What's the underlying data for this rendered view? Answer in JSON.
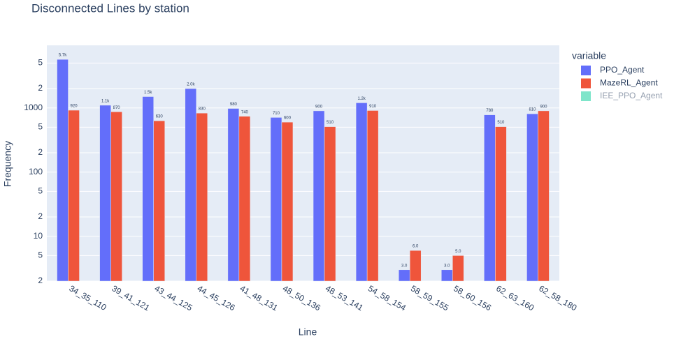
{
  "chart_data": {
    "type": "bar",
    "title": "Disconnected Lines by station",
    "x_label": "Line",
    "y_label": "Frequency",
    "legend_title": "variable",
    "categories": [
      "34_35_110",
      "39_41_121",
      "43_44_125",
      "44_45_126",
      "41_48_131",
      "48_50_136",
      "48_53_141",
      "54_58_154",
      "58_59_155",
      "58_60_156",
      "62_63_160",
      "62_58_180"
    ],
    "series": [
      {
        "name": "PPO_Agent",
        "color": "#636efa",
        "values": [
          5700,
          1100,
          1500,
          2000,
          980,
          710,
          900,
          1200,
          3,
          3,
          780,
          810
        ],
        "value_labels": [
          "5.7k",
          "1.1k",
          "1.5k",
          "2.0k",
          "980",
          "710",
          "900",
          "1.2k",
          "3.0",
          "3.0",
          "780",
          "810"
        ]
      },
      {
        "name": "MazeRL_Agent",
        "color": "#ef553b",
        "values": [
          920,
          870,
          630,
          830,
          740,
          600,
          510,
          910,
          6,
          5,
          510,
          900
        ],
        "value_labels": [
          "920",
          "870",
          "630",
          "830",
          "740",
          "600",
          "510",
          "910",
          "6.0",
          "5.0",
          "510",
          "900"
        ]
      },
      {
        "name": "IEE_PPO_Agent",
        "color": "#00cc96",
        "visible": "legendonly",
        "values": [
          null,
          null,
          null,
          null,
          null,
          null,
          null,
          null,
          null,
          null,
          null,
          null
        ]
      }
    ],
    "log_y": true,
    "ylim": [
      2,
      9440
    ],
    "yticks": [
      2,
      5,
      10,
      {
        "value": 20,
        "label": "2"
      },
      {
        "value": 50,
        "label": "5"
      },
      100,
      {
        "value": 200,
        "label": "2"
      },
      {
        "value": 500,
        "label": "5"
      },
      1000,
      {
        "value": 2000,
        "label": "2"
      },
      {
        "value": 5000,
        "label": "5"
      }
    ],
    "grid": true,
    "legend_position": "right"
  }
}
